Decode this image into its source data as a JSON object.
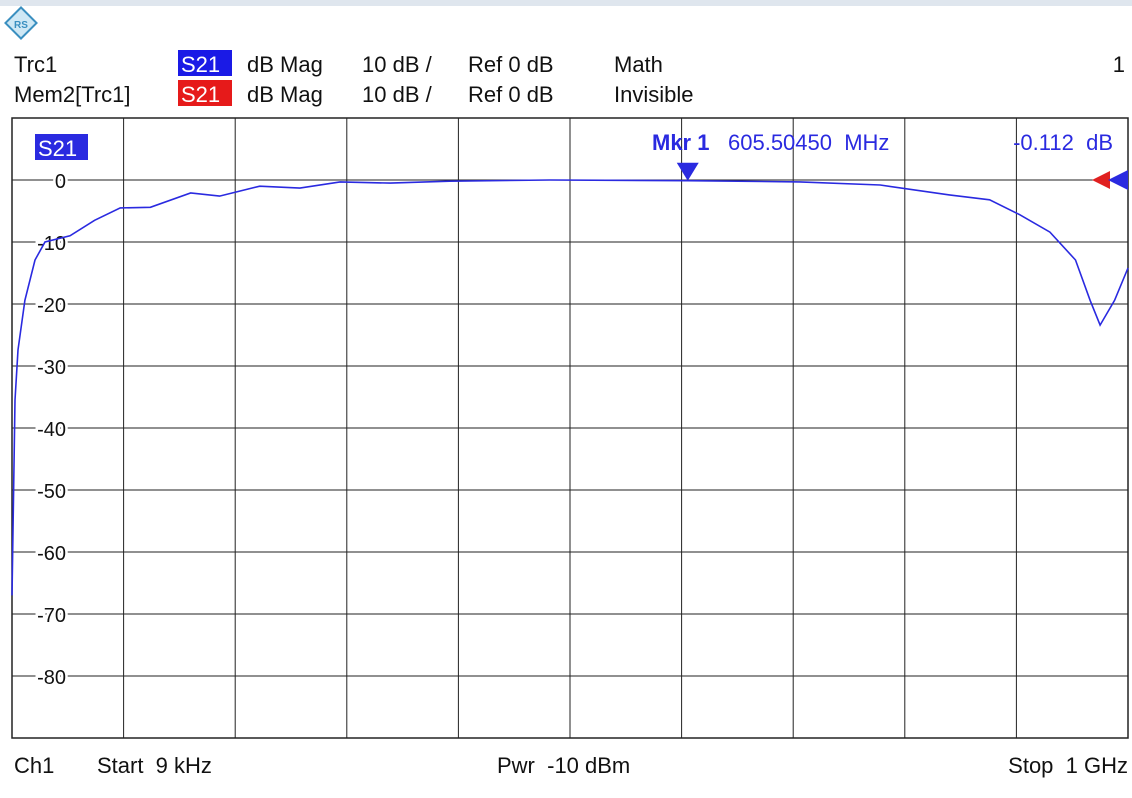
{
  "header": {
    "rows": [
      [
        "Trc1",
        "S21",
        "dB Mag",
        "10 dB /",
        "Ref 0 dB",
        "Math"
      ],
      [
        "Mem2[Trc1]",
        "S21",
        "dB Mag",
        "10 dB /",
        "Ref 0 dB",
        "Invisible"
      ]
    ],
    "channel_number": "1"
  },
  "footer": {
    "channel": "Ch1",
    "start": "Start  9 kHz",
    "power": "Pwr  -10 dBm",
    "stop": "Stop  1 GHz"
  },
  "chart_data": {
    "type": "line",
    "xlim": [
      0.009,
      1000
    ],
    "ylim": [
      -90,
      10
    ],
    "yticks": [
      0,
      -10,
      -20,
      -30,
      -40,
      -50,
      -60,
      -70,
      -80
    ],
    "grid": true,
    "x_divisions": 10,
    "series": [
      {
        "name": "S21",
        "color": "#2a2ae0",
        "x": [
          0.009,
          2.7,
          5.4,
          11.6,
          20.6,
          29.6,
          52,
          74,
          97,
          124,
          160,
          186,
          222,
          258,
          294,
          339,
          392,
          482,
          605.5045,
          706,
          778,
          840,
          876,
          903,
          930,
          953,
          966,
          975,
          988,
          1000
        ],
        "values": [
          -67,
          -35.5,
          -27.4,
          -19.4,
          -12.9,
          -10,
          -9,
          -6.5,
          -4.5,
          -4.4,
          -2.1,
          -2.6,
          -1,
          -1.3,
          -0.3,
          -0.5,
          -0.2,
          0,
          -0.112,
          -0.3,
          -0.8,
          -2.4,
          -3.2,
          -5.6,
          -8.4,
          -12.9,
          -19.4,
          -23.4,
          -19.4,
          -14.2
        ]
      }
    ],
    "marker": {
      "label": "Mkr 1",
      "x": 605.5045,
      "x_label": "605.50450  MHz",
      "value": -0.112,
      "value_label": "-0.112  dB"
    }
  }
}
